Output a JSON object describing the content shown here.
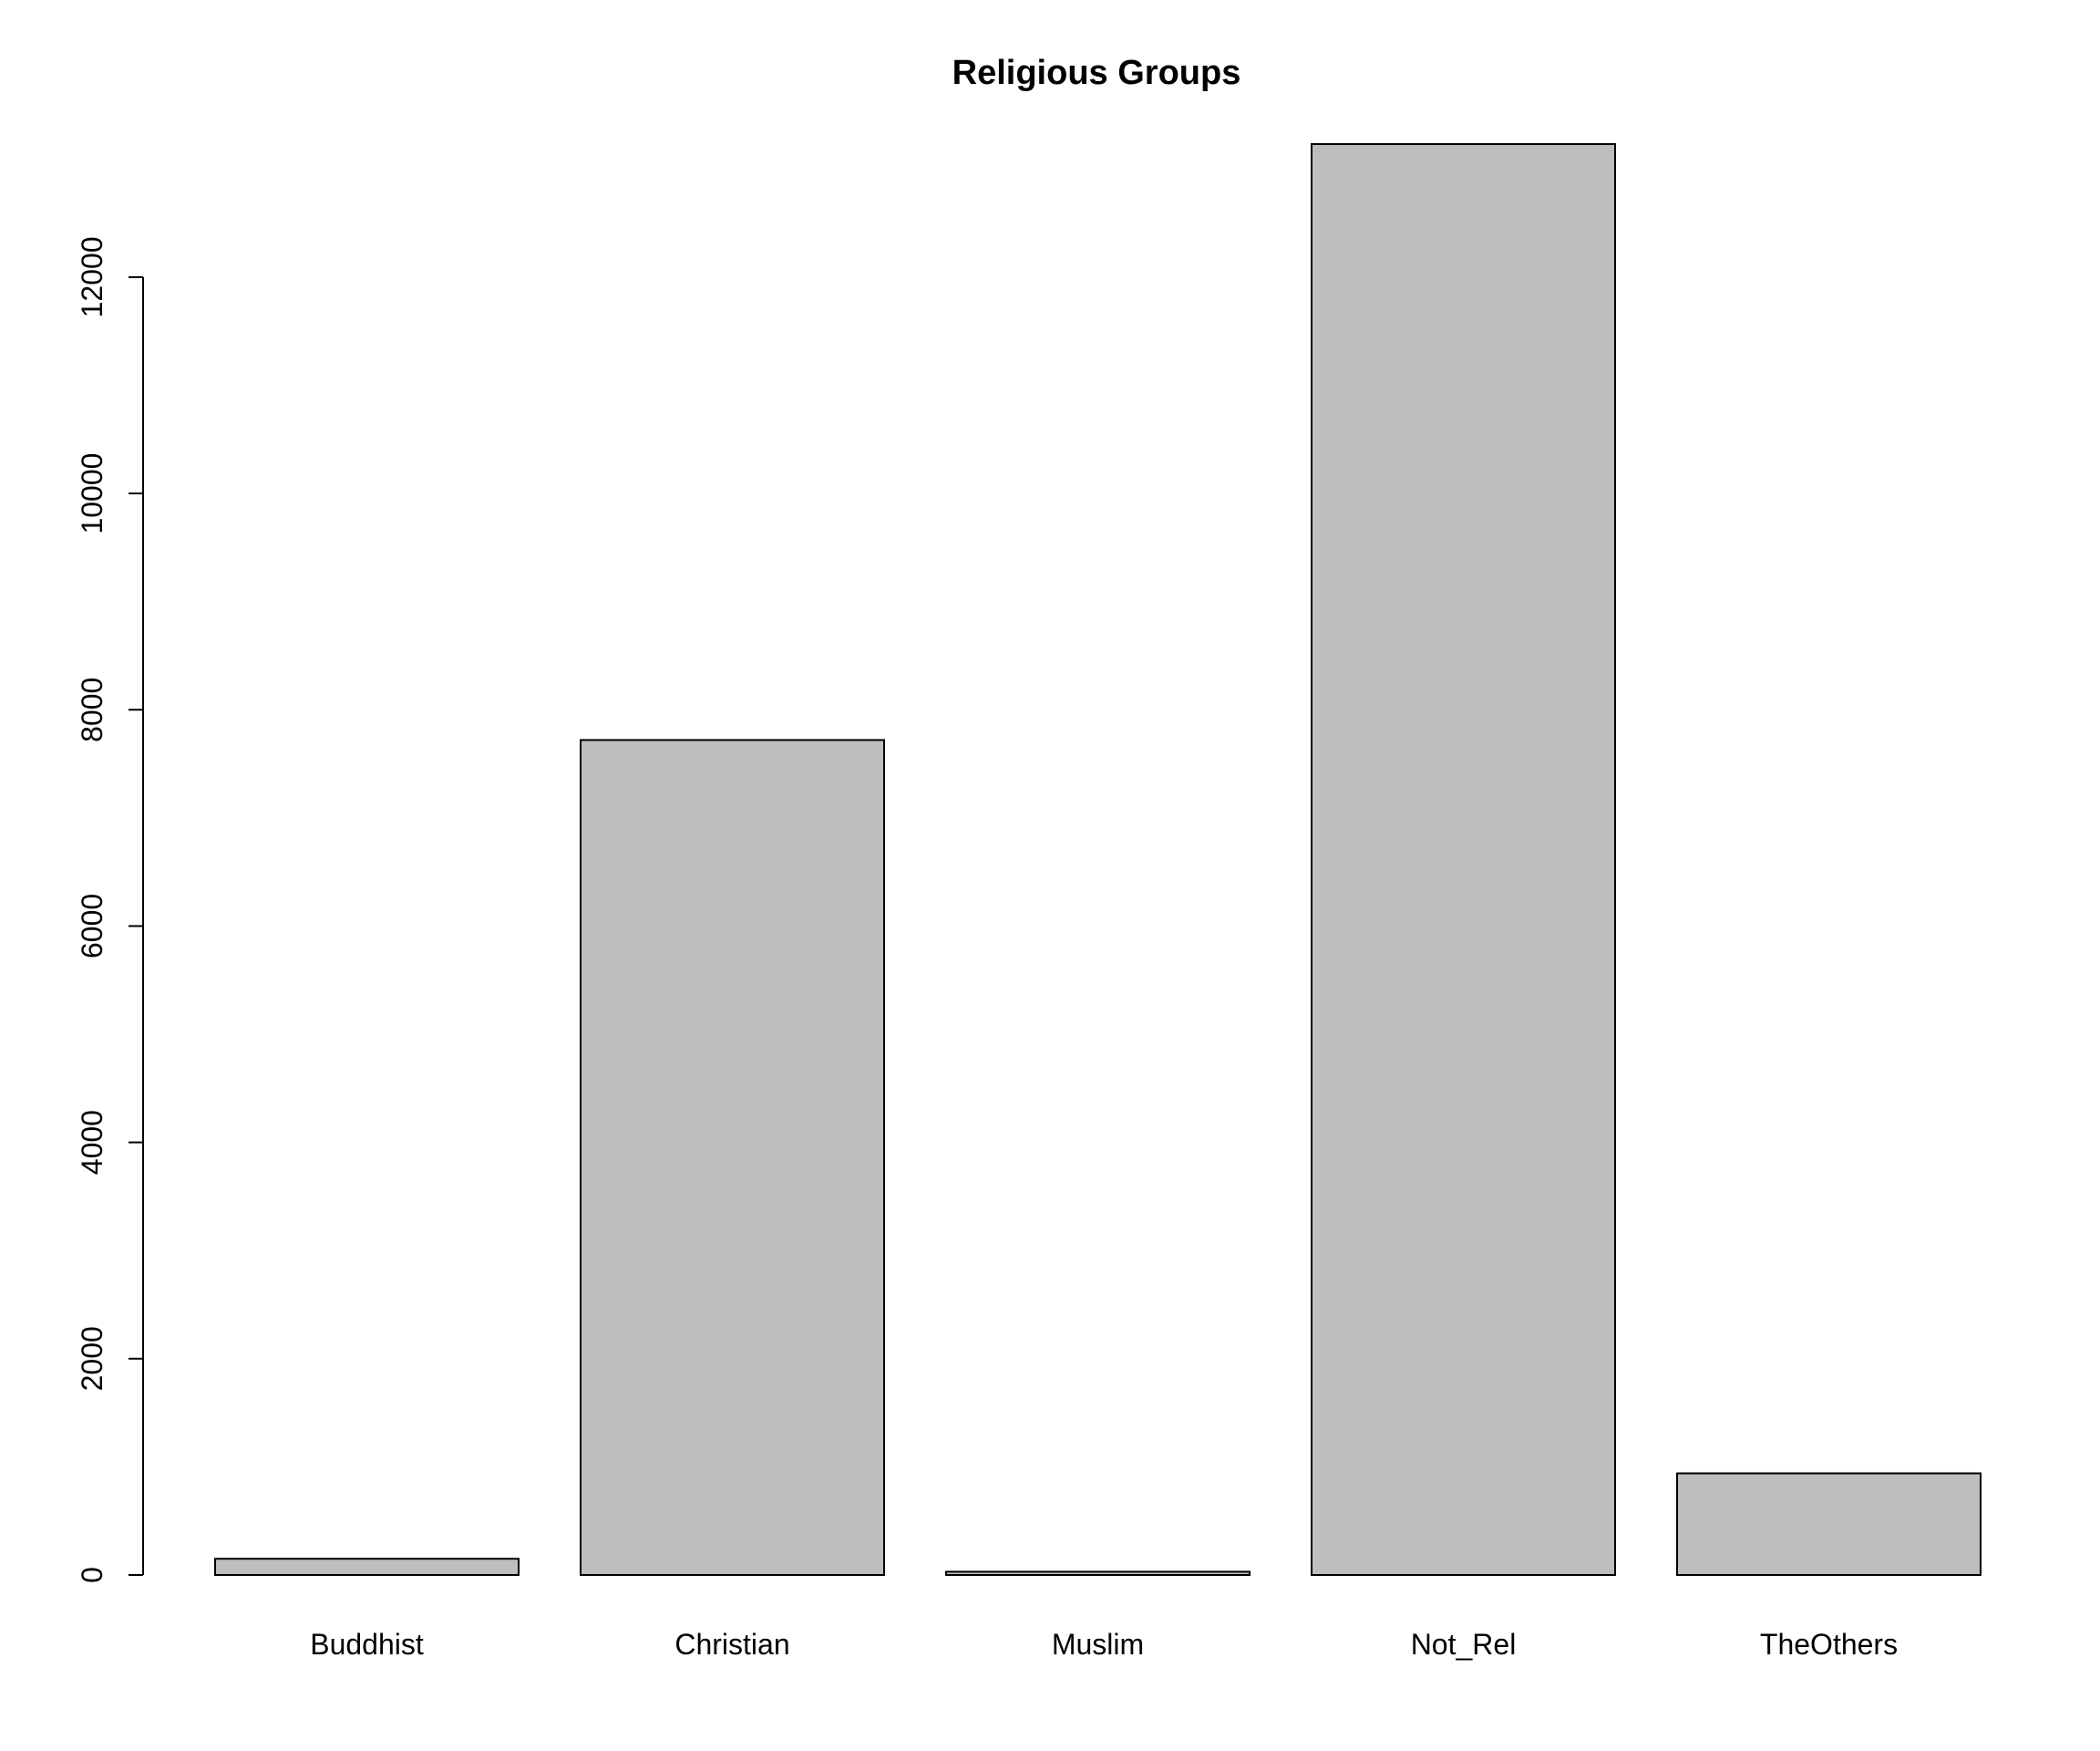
{
  "chart_data": {
    "type": "bar",
    "title": "Religious Groups",
    "xlabel": "",
    "ylabel": "",
    "categories": [
      "Buddhist",
      "Christian",
      "Muslim",
      "Not_Rel",
      "TheOthers"
    ],
    "values": [
      150,
      7720,
      30,
      13230,
      940
    ],
    "ylim": [
      0,
      13230
    ],
    "yticks": [
      0,
      2000,
      4000,
      6000,
      8000,
      10000,
      12000
    ],
    "grid": false,
    "legend": "none",
    "colors": {
      "bar_fill": "#bebebe",
      "bar_border": "#000000",
      "background": "#ffffff"
    }
  }
}
